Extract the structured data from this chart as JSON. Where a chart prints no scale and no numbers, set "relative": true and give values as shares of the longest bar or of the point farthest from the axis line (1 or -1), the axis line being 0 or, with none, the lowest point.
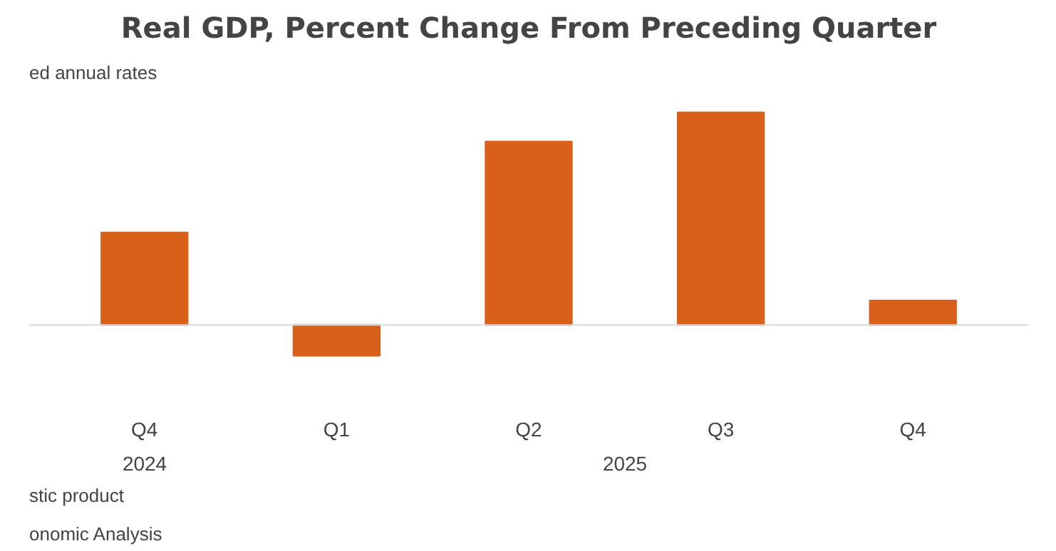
{
  "chart_data": {
    "type": "bar",
    "title": "Real GDP, Percent Change From Preceding Quarter",
    "subtitle": "ed annual rates",
    "categories": [
      "Q4",
      "Q1",
      "Q2",
      "Q3",
      "Q4"
    ],
    "values": [
      0.435,
      -0.145,
      0.863,
      1,
      0.115
    ],
    "color": "#d9601a",
    "relative": true,
    "annotations": [
      "2024",
      "2025",
      "stic product",
      "onomic Analysis"
    ]
  }
}
